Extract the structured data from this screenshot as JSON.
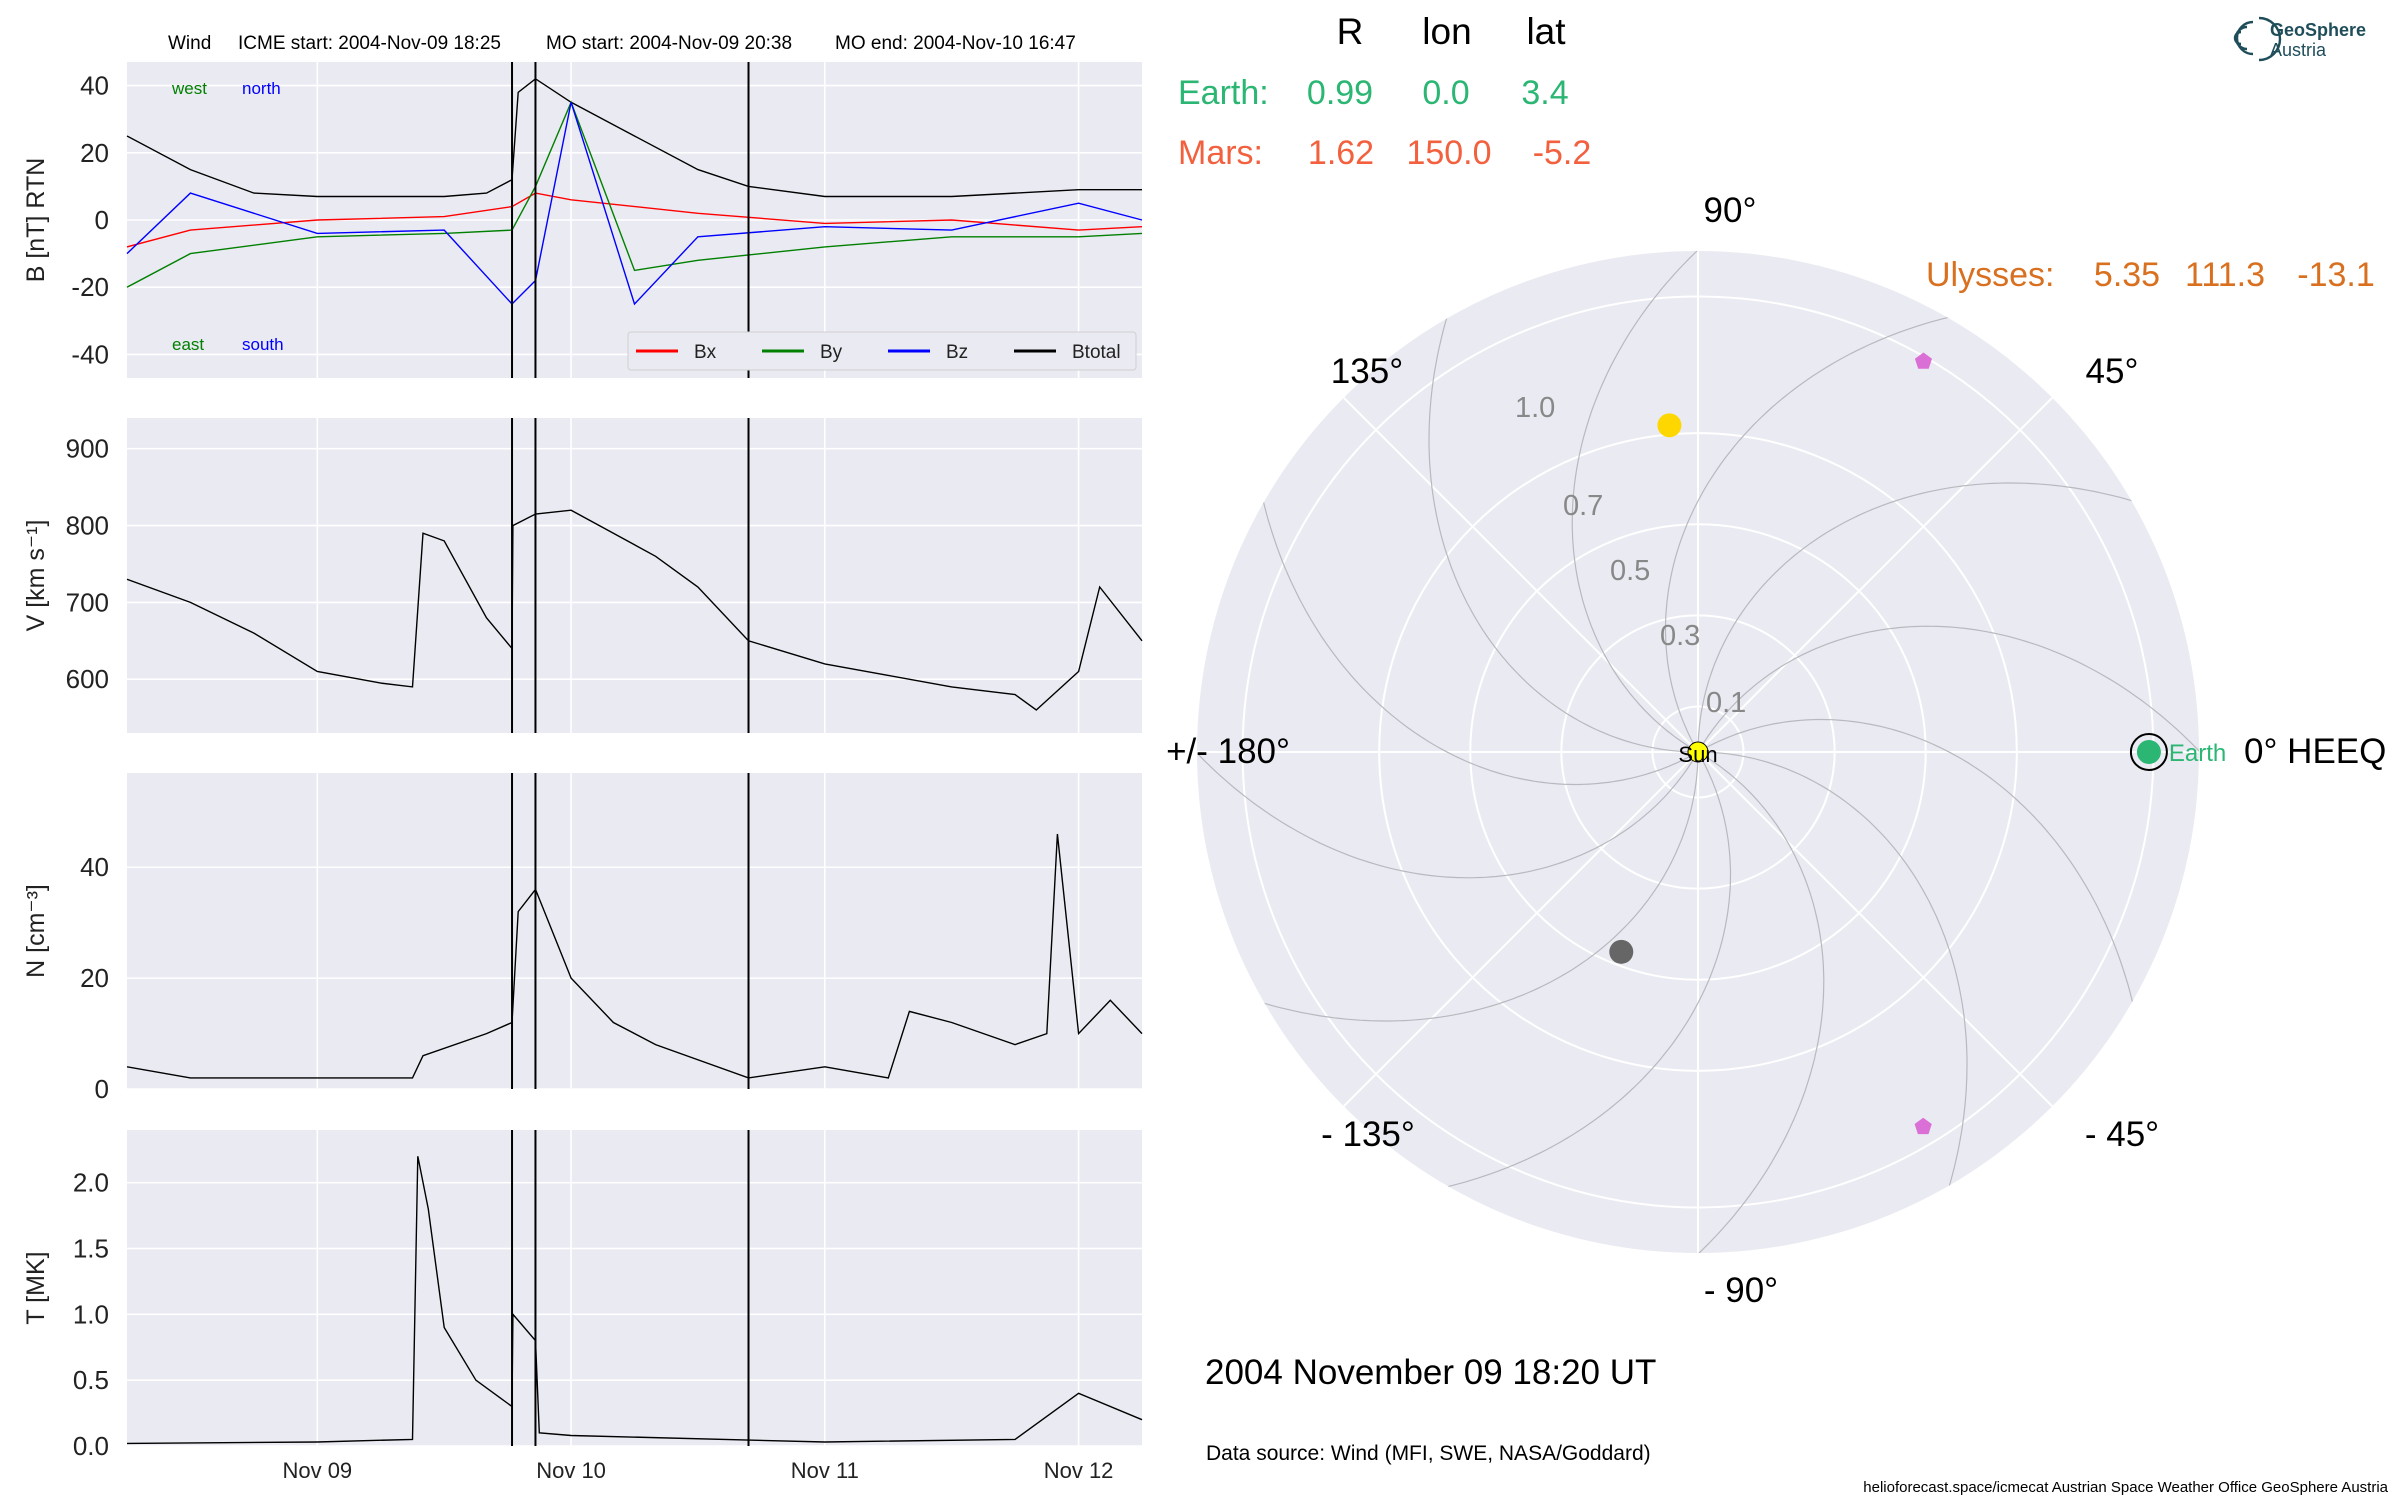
{
  "header": {
    "spacecraft": "Wind",
    "icme_start": "ICME start: 2004-Nov-09 18:25",
    "mo_start": "MO start: 2004-Nov-09 20:38",
    "mo_end": "MO end: 2004-Nov-10 16:47"
  },
  "logo": {
    "line1": "GeoSphere",
    "line2": "Austria"
  },
  "positions_table": {
    "columns": [
      "R",
      "lon",
      "lat"
    ],
    "rows": [
      {
        "label": "Earth:",
        "R": "0.99",
        "lon": "0.0",
        "lat": "3.4",
        "color": "#2bb673"
      },
      {
        "label": "Mars:",
        "R": "1.62",
        "lon": "150.0",
        "lat": "-5.2",
        "color": "#f2603e"
      },
      {
        "label": "Ulysses:",
        "R": "5.35",
        "lon": "111.3",
        "lat": "-13.1",
        "color": "#d9701f"
      }
    ]
  },
  "timestamp": "2004 November 09  18:20 UT",
  "data_source": "Data source: Wind (MFI, SWE, NASA/Goddard)",
  "footer": "helioforecast.space/icmecat   Austrian Space Weather Office   GeoSphere Austria",
  "colors": {
    "bx": "#ff0000",
    "by": "#008000",
    "bz": "#0000ff",
    "btotal": "#000000",
    "panel_bg": "#eaeaf2",
    "earth": "#2bb673",
    "mars_dot": "#666666",
    "venus_dot": "#ffd700",
    "probe": "#da70d6",
    "sun": "#ffff00"
  },
  "chart_data": [
    {
      "type": "line",
      "id": "magnetic_field",
      "ylabel": "B [nT] RTN",
      "ylim": [
        -47,
        47
      ],
      "yticks": [
        -40,
        -20,
        0,
        20,
        40
      ],
      "xlim_days": [
        "2004-11-08 06:00",
        "2004-11-12 06:00"
      ],
      "xtick_labels": [
        "Nov 09",
        "Nov 10",
        "Nov 11",
        "Nov 12"
      ],
      "annotations": {
        "top_left": [
          "west",
          "north"
        ],
        "bottom_left": [
          "east",
          "south"
        ]
      },
      "legend": [
        "Bx",
        "By",
        "Bz",
        "Btotal"
      ],
      "legend_position": "bottom-right",
      "series": [
        {
          "name": "Btotal",
          "x": [
            "2004-11-08 06:00",
            "2004-11-08 12:00",
            "2004-11-08 18:00",
            "2004-11-09 00:00",
            "2004-11-09 12:00",
            "2004-11-09 16:00",
            "2004-11-09 18:25",
            "2004-11-09 19:00",
            "2004-11-09 20:38",
            "2004-11-10 00:00",
            "2004-11-10 06:00",
            "2004-11-10 12:00",
            "2004-11-10 16:47",
            "2004-11-11 00:00",
            "2004-11-11 12:00",
            "2004-11-12 00:00",
            "2004-11-12 06:00"
          ],
          "y": [
            25,
            15,
            8,
            7,
            7,
            8,
            12,
            38,
            42,
            35,
            25,
            15,
            10,
            7,
            7,
            9,
            9
          ]
        },
        {
          "name": "Bx",
          "x": [
            "2004-11-08 06:00",
            "2004-11-08 12:00",
            "2004-11-09 00:00",
            "2004-11-09 12:00",
            "2004-11-09 18:25",
            "2004-11-09 20:38",
            "2004-11-10 00:00",
            "2004-11-10 12:00",
            "2004-11-11 00:00",
            "2004-11-11 12:00",
            "2004-11-12 00:00",
            "2004-11-12 06:00"
          ],
          "y": [
            -8,
            -3,
            0,
            1,
            4,
            8,
            6,
            2,
            -1,
            0,
            -3,
            -2
          ]
        },
        {
          "name": "By",
          "x": [
            "2004-11-08 06:00",
            "2004-11-08 12:00",
            "2004-11-09 00:00",
            "2004-11-09 12:00",
            "2004-11-09 18:25",
            "2004-11-09 20:38",
            "2004-11-10 00:00",
            "2004-11-10 06:00",
            "2004-11-10 12:00",
            "2004-11-11 00:00",
            "2004-11-11 12:00",
            "2004-11-12 00:00",
            "2004-11-12 06:00"
          ],
          "y": [
            -20,
            -10,
            -5,
            -4,
            -3,
            10,
            35,
            -15,
            -12,
            -8,
            -5,
            -5,
            -4
          ]
        },
        {
          "name": "Bz",
          "x": [
            "2004-11-08 06:00",
            "2004-11-08 12:00",
            "2004-11-09 00:00",
            "2004-11-09 12:00",
            "2004-11-09 18:25",
            "2004-11-09 20:38",
            "2004-11-10 00:00",
            "2004-11-10 06:00",
            "2004-11-10 12:00",
            "2004-11-11 00:00",
            "2004-11-11 12:00",
            "2004-11-12 00:00",
            "2004-11-12 06:00"
          ],
          "y": [
            -10,
            8,
            -4,
            -3,
            -25,
            -18,
            35,
            -25,
            -5,
            -2,
            -3,
            5,
            0
          ]
        }
      ]
    },
    {
      "type": "line",
      "id": "speed",
      "ylabel": "V [km s⁻¹]",
      "ylim": [
        530,
        940
      ],
      "yticks": [
        600,
        700,
        800,
        900
      ],
      "series": [
        {
          "name": "V",
          "x": [
            "2004-11-08 06:00",
            "2004-11-08 12:00",
            "2004-11-08 18:00",
            "2004-11-09 00:00",
            "2004-11-09 06:00",
            "2004-11-09 09:00",
            "2004-11-09 10:00",
            "2004-11-09 12:00",
            "2004-11-09 16:00",
            "2004-11-09 18:25",
            "2004-11-09 18:30",
            "2004-11-09 20:38",
            "2004-11-10 00:00",
            "2004-11-10 04:00",
            "2004-11-10 08:00",
            "2004-11-10 12:00",
            "2004-11-10 16:47",
            "2004-11-11 00:00",
            "2004-11-11 06:00",
            "2004-11-11 12:00",
            "2004-11-11 18:00",
            "2004-11-11 20:00",
            "2004-11-12 00:00",
            "2004-11-12 02:00",
            "2004-11-12 06:00"
          ],
          "y": [
            730,
            700,
            660,
            610,
            595,
            590,
            790,
            780,
            680,
            640,
            800,
            815,
            820,
            790,
            760,
            720,
            650,
            620,
            605,
            590,
            580,
            560,
            610,
            720,
            650
          ]
        }
      ]
    },
    {
      "type": "line",
      "id": "density",
      "ylabel": "N [cm⁻³]",
      "ylim": [
        0,
        57
      ],
      "yticks": [
        0,
        20,
        40
      ],
      "series": [
        {
          "name": "N",
          "x": [
            "2004-11-08 06:00",
            "2004-11-08 12:00",
            "2004-11-09 00:00",
            "2004-11-09 09:00",
            "2004-11-09 10:00",
            "2004-11-09 16:00",
            "2004-11-09 18:25",
            "2004-11-09 19:00",
            "2004-11-09 20:38",
            "2004-11-10 00:00",
            "2004-11-10 04:00",
            "2004-11-10 08:00",
            "2004-11-10 16:47",
            "2004-11-11 00:00",
            "2004-11-11 06:00",
            "2004-11-11 08:00",
            "2004-11-11 12:00",
            "2004-11-11 18:00",
            "2004-11-11 21:00",
            "2004-11-11 22:00",
            "2004-11-12 00:00",
            "2004-11-12 03:00",
            "2004-11-12 06:00"
          ],
          "y": [
            4,
            2,
            2,
            2,
            6,
            10,
            12,
            32,
            36,
            20,
            12,
            8,
            2,
            4,
            2,
            14,
            12,
            8,
            10,
            46,
            10,
            16,
            10
          ]
        }
      ]
    },
    {
      "type": "line",
      "id": "temperature",
      "ylabel": "T [MK]",
      "ylim": [
        0,
        2.4
      ],
      "yticks": [
        0.0,
        0.5,
        1.0,
        1.5,
        2.0,
        2.5
      ],
      "yticks_labeled": [
        "0.0",
        "0.5",
        "1.0",
        "1.5",
        "2.0"
      ],
      "series": [
        {
          "name": "T",
          "x": [
            "2004-11-08 06:00",
            "2004-11-09 00:00",
            "2004-11-09 09:00",
            "2004-11-09 09:30",
            "2004-11-09 10:30",
            "2004-11-09 12:00",
            "2004-11-09 15:00",
            "2004-11-09 18:25",
            "2004-11-09 18:30",
            "2004-11-09 20:38",
            "2004-11-09 21:00",
            "2004-11-10 00:00",
            "2004-11-11 00:00",
            "2004-11-11 18:00",
            "2004-11-12 00:00",
            "2004-11-12 06:00"
          ],
          "y": [
            0.02,
            0.03,
            0.05,
            2.2,
            1.8,
            0.9,
            0.5,
            0.3,
            1.0,
            0.8,
            0.1,
            0.08,
            0.03,
            0.05,
            0.4,
            0.2
          ]
        }
      ]
    },
    {
      "type": "scatter",
      "id": "polar_positions",
      "projection": "polar",
      "coordinate_system": "0° HEEQ",
      "radial_ticks": [
        "0.1",
        "0.3",
        "0.5",
        "0.7",
        "1.0"
      ],
      "angle_labels": [
        "90°",
        "45°",
        "0° HEEQ",
        "- 45°",
        "- 90°",
        "- 135°",
        "+/- 180°",
        "135°"
      ],
      "points": [
        {
          "name": "Earth",
          "r": 0.99,
          "lon": 0.0,
          "marker": "circle-ringed",
          "color": "#2bb673"
        },
        {
          "name": "Sun",
          "r": 0.0,
          "lon": 0.0,
          "marker": "circle",
          "color": "#ffff00"
        },
        {
          "r": 0.72,
          "lon": 95,
          "marker": "circle",
          "color": "#ffd700"
        },
        {
          "r": 0.47,
          "lon": -111,
          "marker": "circle",
          "color": "#666666"
        },
        {
          "r": 0.99,
          "lon": 60,
          "marker": "pentagon",
          "color": "#da70d6"
        },
        {
          "r": 0.96,
          "lon": -59,
          "marker": "pentagon",
          "color": "#da70d6"
        }
      ]
    }
  ]
}
